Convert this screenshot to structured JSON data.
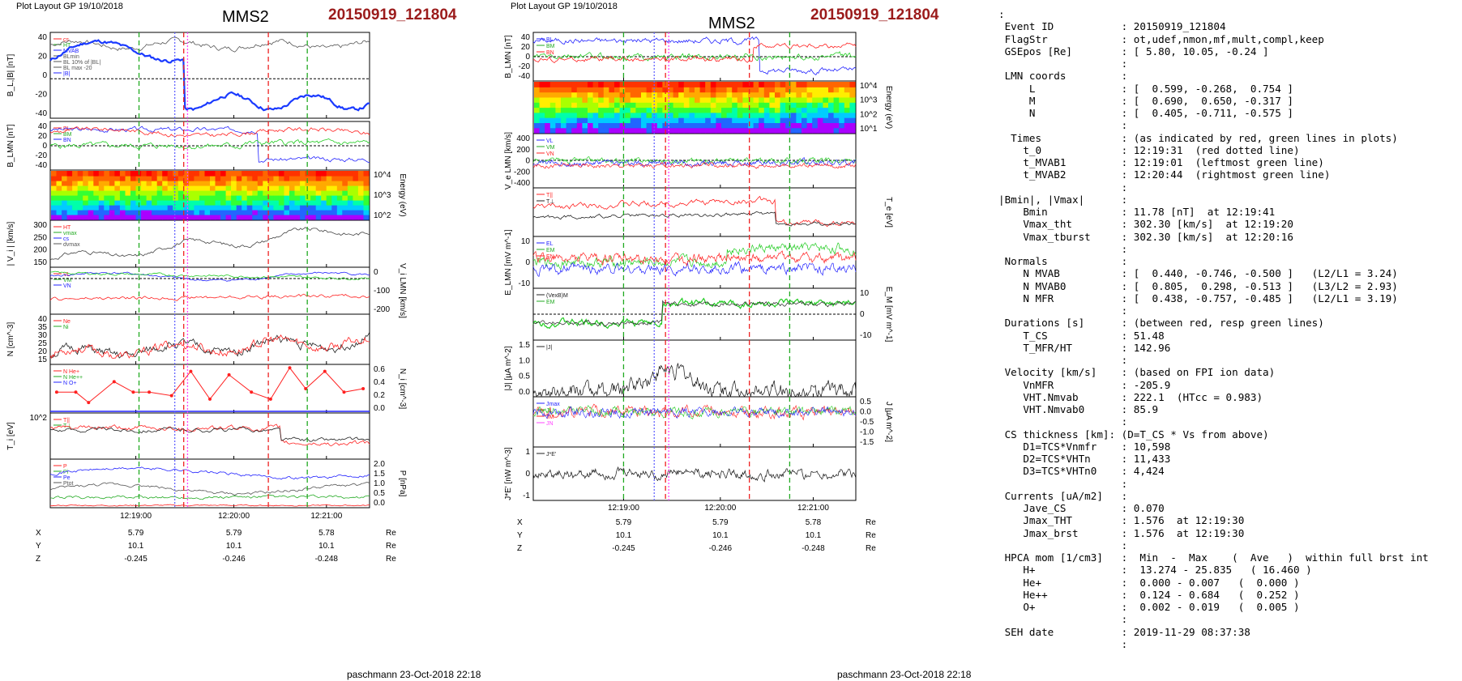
{
  "left_plot": {
    "header_small": "Plot Layout GP 19/10/2018",
    "spacecraft": "MMS2",
    "event": "20150919_121804",
    "footer": "paschmann 23-Oct-2018 22:18",
    "time_ticks": [
      "12:19:00",
      "12:20:00",
      "12:21:00"
    ],
    "panels": [
      {
        "ylabel": "B_L,|B| [nT]",
        "ticks": [
          "40",
          "20",
          "0",
          "-20",
          "-40"
        ],
        "legend": [
          "cs",
          "HT",
          "MVAB",
          "BLmin",
          "BL 10% of |BL|",
          "BL max -20",
          "|B|"
        ]
      },
      {
        "ylabel": "B_LMN [nT]",
        "ticks": [
          "40",
          "20",
          "0",
          "-20",
          "-40"
        ],
        "legend": [
          "BL",
          "BM",
          "BN"
        ]
      },
      {
        "ylabel": "Energy (eV)",
        "ticks": [
          "10^4",
          "10^3",
          "10^2"
        ],
        "legend": []
      },
      {
        "ylabel": "| V_i | [km/s]",
        "ticks": [
          "300",
          "250",
          "200",
          "150"
        ],
        "legend": [
          "HT",
          "vmax",
          "cs",
          "dvmax"
        ]
      },
      {
        "ylabel": "V_i LMN [km/s]",
        "ticks": [
          "0",
          "-100",
          "-200"
        ],
        "legend": [
          "VL",
          "VM",
          "VN"
        ]
      },
      {
        "ylabel": "N [cm^-3]",
        "ticks": [
          "40",
          "35",
          "30",
          "25",
          "20",
          "15"
        ],
        "legend": [
          "Ne",
          "Ni"
        ]
      },
      {
        "ylabel": "N_i [cm^-3]",
        "ticks": [
          "0.6",
          "0.4",
          "0.2",
          "0.0"
        ],
        "legend": [
          "N He+",
          "N He++",
          "N O+"
        ]
      },
      {
        "ylabel": "T_i [eV]",
        "ticks": [
          "10^2"
        ],
        "legend": [
          "T||",
          "T⊥"
        ]
      },
      {
        "ylabel": "P [nPa]",
        "ticks": [
          "2.0",
          "1.5",
          "1.0",
          "0.5",
          "0.0"
        ],
        "legend": [
          "P",
          "Pi",
          "Pe",
          "Ptot"
        ]
      }
    ],
    "coords": {
      "rows": [
        {
          "label": "X",
          "values": [
            "5.79",
            "5.79",
            "5.78"
          ],
          "unit": "Re"
        },
        {
          "label": "Y",
          "values": [
            "10.1",
            "10.1",
            "10.1"
          ],
          "unit": "Re"
        },
        {
          "label": "Z",
          "values": [
            "-0.245",
            "-0.246",
            "-0.248"
          ],
          "unit": "Re"
        }
      ]
    }
  },
  "right_plot": {
    "header_small": "Plot Layout GP 19/10/2018",
    "spacecraft": "MMS2",
    "event": "20150919_121804",
    "footer": "paschmann 23-Oct-2018 22:18",
    "time_ticks": [
      "12:19:00",
      "12:20:00",
      "12:21:00"
    ],
    "panels": [
      {
        "ylabel": "B_LMN [nT]",
        "ticks": [
          "40",
          "20",
          "0",
          "-20",
          "-40"
        ],
        "legend": [
          "BL",
          "BM",
          "BN"
        ]
      },
      {
        "ylabel": "Energy (eV)",
        "ticks": [
          "10^4",
          "10^3",
          "10^2",
          "10^1"
        ],
        "legend": []
      },
      {
        "ylabel": "V_e LMN [km/s]",
        "ticks": [
          "400",
          "200",
          "0",
          "-200",
          "-400"
        ],
        "legend": [
          "VL",
          "VM",
          "VN"
        ]
      },
      {
        "ylabel": "T_e [eV]",
        "ticks": [],
        "legend": [
          "T||",
          "T⊥"
        ]
      },
      {
        "ylabel": "E_LMN [mV m^-1]",
        "ticks": [
          "10",
          "0",
          "-10"
        ],
        "legend": [
          "EL",
          "EM",
          "EN"
        ]
      },
      {
        "ylabel": "E_M [mV m^-1]",
        "ticks": [
          "10",
          "0",
          "-10"
        ],
        "legend": [
          "(VexB)M",
          "EM"
        ]
      },
      {
        "ylabel": "|J| [µA m^-2]",
        "ticks": [
          "1.5",
          "1.0",
          "0.5",
          "0.0"
        ],
        "legend": [
          "|J|"
        ]
      },
      {
        "ylabel": "J [µA m^-2]",
        "ticks": [
          "0.5",
          "0.0",
          "-0.5",
          "-1.0",
          "-1.5"
        ],
        "legend": [
          "Jmax",
          "JL",
          "JM",
          "JN"
        ]
      },
      {
        "ylabel": "J*E' [nW m^-3]",
        "ticks": [
          "1",
          "0",
          "-1"
        ],
        "legend": [
          "J*E'"
        ]
      }
    ],
    "coords": {
      "rows": [
        {
          "label": "X",
          "values": [
            "5.79",
            "5.79",
            "5.78"
          ],
          "unit": "Re"
        },
        {
          "label": "Y",
          "values": [
            "10.1",
            "10.1",
            "10.1"
          ],
          "unit": "Re"
        },
        {
          "label": "Z",
          "values": [
            "-0.245",
            "-0.246",
            "-0.248"
          ],
          "unit": "Re"
        }
      ]
    }
  },
  "summary_lines": [
    ":",
    " Event ID           : 20150919_121804",
    " FlagStr            : ot,udef,nmon,mf,mult,compl,keep",
    " GSEpos [Re]        : [ 5.80, 10.05, -0.24 ]",
    "                    :",
    " LMN coords         :",
    "     L              : [  0.599, -0.268,  0.754 ]",
    "     M              : [  0.690,  0.650, -0.317 ]",
    "     N              : [  0.405, -0.711, -0.575 ]",
    "                    :",
    "  Times             : (as indicated by red, green lines in plots)",
    "    t_0             : 12:19:31  (red dotted line)",
    "    t_MVAB1         : 12:19:01  (leftmost green line)",
    "    t_MVAB2         : 12:20:44  (rightmost green line)",
    "                    :",
    "|Bmin|, |Vmax|      :",
    "    Bmin            : 11.78 [nT]  at 12:19:41",
    "    Vmax_tht        : 302.30 [km/s]  at 12:19:20",
    "    Vmax_tburst     : 302.30 [km/s]  at 12:20:16",
    "                    :",
    " Normals            :",
    "    N MVAB          : [  0.440, -0.746, -0.500 ]   (L2/L1 = 3.24)",
    "    N MVAB0         : [  0.805,  0.298, -0.513 ]   (L3/L2 = 2.93)",
    "    N MFR           : [  0.438, -0.757, -0.485 ]   (L2/L1 = 3.19)",
    "                    :",
    " Durations [s]      : (between red, resp green lines)",
    "    T_CS            : 51.48",
    "    T_MFR/HT        : 142.96",
    "                    :",
    " Velocity [km/s]    : (based on FPI ion data)",
    "    VnMFR           : -205.9",
    "    VHT.Nmvab       : 222.1  (HTcc = 0.983)",
    "    VHT.Nmvab0      : 85.9",
    "                    :",
    " CS thickness [km]: (D=T_CS * Vs from above)",
    "    D1=TCS*Vnmfr    : 10,598",
    "    D2=TCS*VHTn     : 11,433",
    "    D3=TCS*VHTn0    : 4,424",
    "                    :",
    " Currents [uA/m2]   :",
    "    Jave_CS         : 0.070",
    "    Jmax_THT        : 1.576  at 12:19:30",
    "    Jmax_brst       : 1.576  at 12:19:30",
    "                    :",
    " HPCA mom [1/cm3]   :  Min  -  Max    (  Ave   )  within full brst int",
    "    H+              :  13.274 - 25.835   ( 16.460 )",
    "    He+             :  0.000 - 0.007   (  0.000 )",
    "    He++            :  0.124 - 0.684   (  0.252 )",
    "    O+              :  0.002 - 0.019   (  0.005 )",
    "                    :",
    " SEH date           : 2019-11-29 08:37:38",
    "                    :"
  ],
  "colors": {
    "event": "#9b1b1b",
    "bl": "#1a1aff",
    "bm": "#22cc22",
    "bn": "#ff2020",
    "fit": "#1a3aff",
    "grey": "#555555",
    "red_line": "#ee2222",
    "green_line": "#22aa22"
  },
  "chart_data": [
    {
      "type": "line",
      "title": "MMS2  20150919_121804",
      "x_ticks": [
        "12:19:00",
        "12:20:00",
        "12:21:00"
      ],
      "series": [
        {
          "name": "|B|",
          "values_approx": [
            30,
            35,
            35,
            30,
            38,
            35,
            30,
            35,
            35,
            32
          ]
        },
        {
          "name": "BL",
          "values_approx": [
            15,
            28,
            32,
            38,
            20,
            -10,
            -20,
            -30,
            -35,
            -32
          ]
        }
      ],
      "ylim": [
        -40,
        40
      ]
    },
    {
      "type": "line",
      "x_ticks": [
        "12:19:00",
        "12:20:00",
        "12:21:00"
      ],
      "series": [
        {
          "name": "|J|",
          "values_approx": [
            0.1,
            0.2,
            0.3,
            1.5,
            0.4,
            0.3,
            0.2,
            0.1
          ]
        }
      ],
      "ylim": [
        0,
        1.5
      ]
    }
  ]
}
